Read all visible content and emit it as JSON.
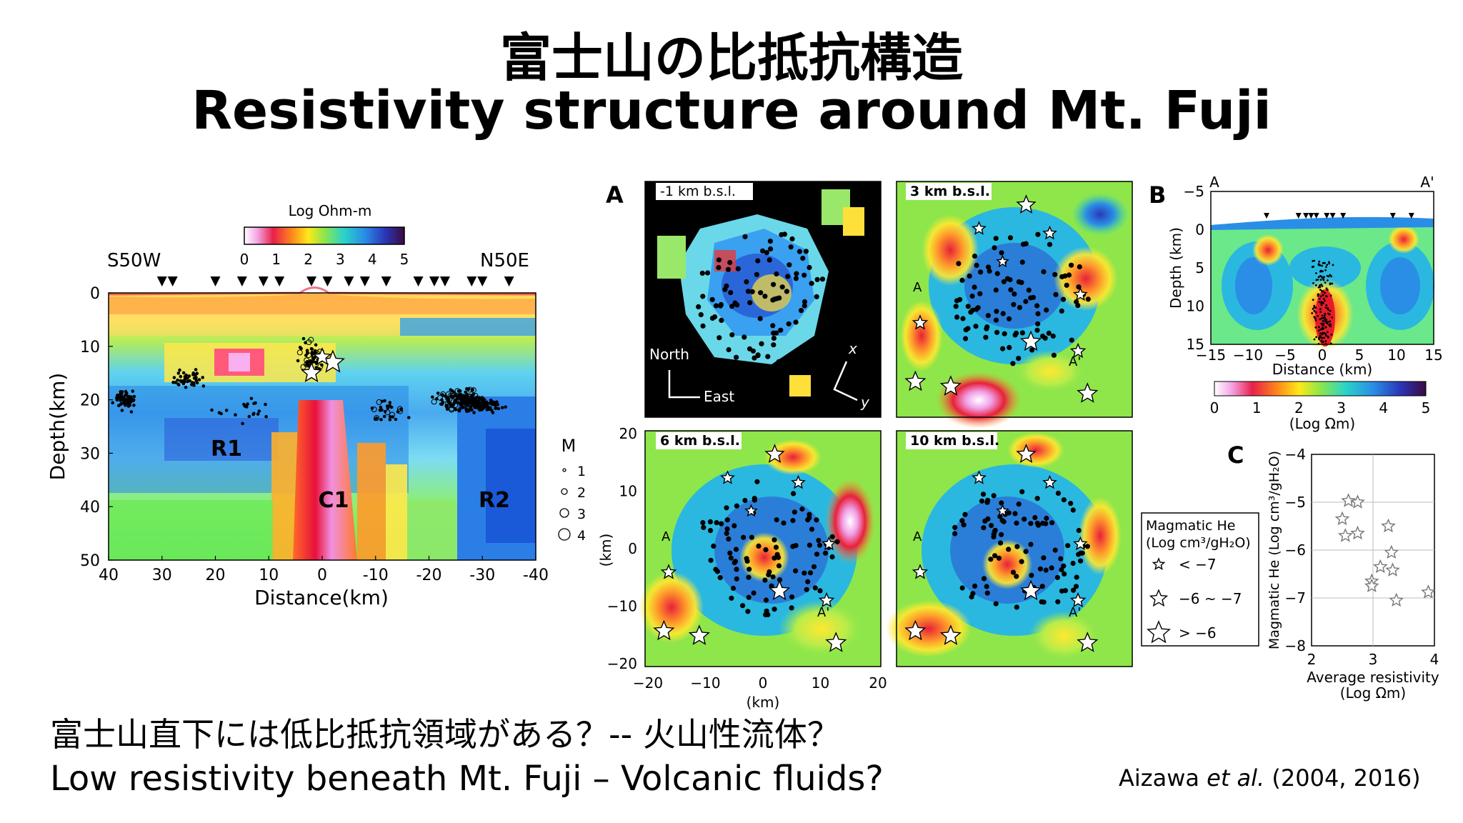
{
  "title_jp": "富士山の比抵抗構造",
  "title_en": "Resistivity structure around Mt. Fuji",
  "bottom_jp": "富士山直下には低比抵抗領域がある？-- 火山性流体？",
  "bottom_en": "Low resistivity beneath Mt. Fuji – Volcanic fluids?",
  "citation": {
    "author": "Aizawa",
    "etal": "et al.",
    "years": "(2004, 2016)"
  },
  "colors": {
    "black_bg": "#000000",
    "white": "#ffffff"
  },
  "chart_data": [
    {
      "type": "heatmap",
      "panel": "left-section",
      "title": "Log Ohm-m",
      "colorbar_ticks": [
        "0",
        "1",
        "2",
        "3",
        "4",
        "5"
      ],
      "left_direction": "S50W",
      "right_direction": "N50E",
      "xlabel": "Distance(km)",
      "ylabel": "Depth(km)",
      "x_ticks": [
        "40",
        "30",
        "20",
        "10",
        "0",
        "-10",
        "-20",
        "-30",
        "-40"
      ],
      "y_ticks": [
        "0",
        "10",
        "20",
        "30",
        "40",
        "50"
      ],
      "xlim": [
        40,
        -40
      ],
      "ylim": [
        0,
        50
      ],
      "regions": [
        "R1",
        "C1",
        "R2"
      ],
      "legend": {
        "title": "M",
        "entries": [
          "1",
          "2",
          "3",
          "4"
        ]
      }
    },
    {
      "type": "heatmap",
      "panel": "A",
      "panel_label": "A",
      "maps": [
        {
          "label": "-1 km b.s.l."
        },
        {
          "label": "3 km b.s.l."
        },
        {
          "label": "6 km b.s.l."
        },
        {
          "label": "10 km b.s.l."
        }
      ],
      "compass": {
        "north": "North",
        "east": "East",
        "x": "x",
        "y": "y"
      },
      "xlabel": "(km)",
      "ylabel": "(km)",
      "x_ticks": [
        "−20",
        "−10",
        "0",
        "10",
        "20"
      ],
      "y_ticks": [
        "20",
        "10",
        "0",
        "−10",
        "−20"
      ],
      "section_labels": [
        "A",
        "A'"
      ],
      "legend": {
        "title_line1": "Magmatic He",
        "title_line2": "(Log cm³/gH₂O)",
        "entries": [
          "< −7",
          "−6 ~ −7",
          "> −6"
        ]
      }
    },
    {
      "type": "heatmap",
      "panel": "B",
      "panel_label": "B",
      "section_start": "A",
      "section_end": "A'",
      "ylabel": "Depth (km)",
      "xlabel": "Distance (km)",
      "x_ticks": [
        "−15",
        "−10",
        "−5",
        "0",
        "5",
        "10",
        "15"
      ],
      "y_ticks": [
        "−5",
        "0",
        "5",
        "10",
        "15"
      ],
      "xlim": [
        -15,
        15
      ],
      "ylim": [
        -5,
        15
      ],
      "colorbar_ticks": [
        "0",
        "1",
        "2",
        "3",
        "4",
        "5"
      ],
      "colorbar_label": "(Log Ωm)"
    },
    {
      "type": "scatter",
      "panel": "C",
      "panel_label": "C",
      "xlabel_line1": "Average resistivity",
      "xlabel_line2": "(Log Ωm)",
      "ylabel": "Magmatic He (Log cm³/gH₂O)",
      "x_ticks": [
        "2",
        "3",
        "4"
      ],
      "y_ticks": [
        "−4",
        "−5",
        "−6",
        "−7",
        "−8"
      ],
      "xlim": [
        2,
        4
      ],
      "ylim": [
        -8,
        -4
      ],
      "points": [
        {
          "x": 2.5,
          "y": -5.35
        },
        {
          "x": 2.6,
          "y": -4.97
        },
        {
          "x": 2.75,
          "y": -5.0
        },
        {
          "x": 2.55,
          "y": -5.7
        },
        {
          "x": 2.75,
          "y": -5.65
        },
        {
          "x": 3.25,
          "y": -5.5
        },
        {
          "x": 3.3,
          "y": -6.05
        },
        {
          "x": 3.12,
          "y": -6.35
        },
        {
          "x": 3.32,
          "y": -6.42
        },
        {
          "x": 2.98,
          "y": -6.65
        },
        {
          "x": 2.98,
          "y": -6.75
        },
        {
          "x": 3.38,
          "y": -7.05
        },
        {
          "x": 3.9,
          "y": -6.88
        }
      ]
    }
  ]
}
